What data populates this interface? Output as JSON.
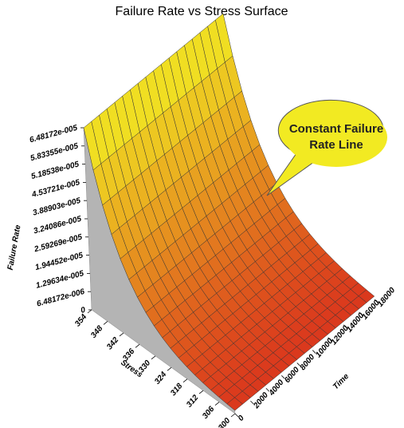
{
  "chart_data": {
    "type": "surface",
    "title": "Failure Rate vs Stress Surface",
    "xlabel": "Time",
    "ylabel": "Stress",
    "zlabel": "Failure Rate",
    "xlim": [
      0,
      18000
    ],
    "xticks": [
      0,
      2000,
      4000,
      6000,
      8000,
      10000,
      12000,
      14000,
      16000,
      18000
    ],
    "ylim": [
      300,
      354
    ],
    "yticks": [
      300,
      306,
      312,
      318,
      324,
      330,
      336,
      342,
      348,
      354
    ],
    "zlim": [
      0,
      6.48172e-05
    ],
    "zticks": [
      0,
      {
        "value": 6.48172e-06,
        "label": "6.48172e-006"
      },
      {
        "value": 1.29634e-05,
        "label": "1.29634e-005"
      },
      {
        "value": 1.94452e-05,
        "label": "1.94452e-005"
      },
      {
        "value": 2.59269e-05,
        "label": "2.59269e-005"
      },
      {
        "value": 3.24086e-05,
        "label": "3.24086e-005"
      },
      {
        "value": 3.88903e-05,
        "label": "3.88903e-005"
      },
      {
        "value": 4.53721e-05,
        "label": "4.53721e-005"
      },
      {
        "value": 5.18538e-05,
        "label": "5.18538e-005"
      },
      {
        "value": 5.83355e-05,
        "label": "5.83355e-005"
      },
      {
        "value": 6.48172e-05,
        "label": "6.48172e-005"
      }
    ],
    "time": [
      0,
      1000,
      2000,
      3000,
      4000,
      5000,
      6000,
      7000,
      8000,
      9000,
      10000,
      11000,
      12000,
      13000,
      14000,
      15000,
      16000,
      17000,
      18000
    ],
    "stress": [
      300,
      303,
      306,
      309,
      312,
      315,
      318,
      321,
      324,
      327,
      330,
      333,
      336,
      339,
      342,
      345,
      348,
      351,
      354
    ],
    "values": [
      1.13e-06,
      1.415e-06,
      1.772e-06,
      2.219e-06,
      2.779e-06,
      3.481e-06,
      4.359e-06,
      5.458e-06,
      6.836e-06,
      8.561e-06,
      1.072e-05,
      1.343e-05,
      1.681e-05,
      2.106e-05,
      2.637e-05,
      3.302e-05,
      4.136e-05,
      5.18e-05,
      6.48e-05
    ],
    "low_color": "#d8261c",
    "high_color": "#f2ea22",
    "side_color": "#b4b4b4",
    "annotation": [
      "Constant Failure",
      "Rate Line"
    ]
  }
}
